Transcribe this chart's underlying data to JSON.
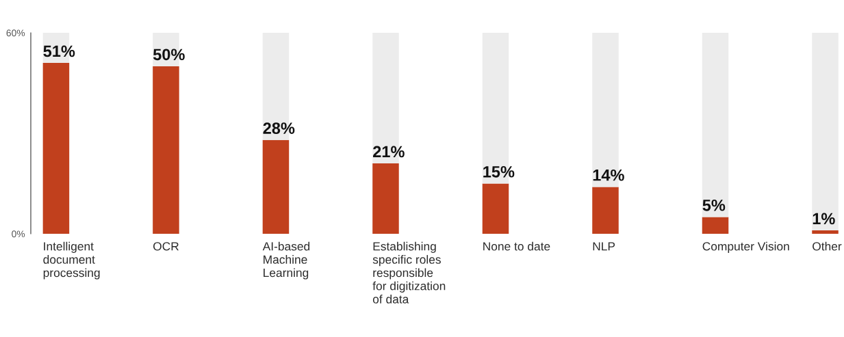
{
  "chart_data": {
    "type": "bar",
    "categories": [
      "Intelligent\ndocument\nprocessing",
      "OCR",
      "AI-based\nMachine\nLearning",
      "Establishing\nspecific roles\nresponsible\nfor digitization\nof data",
      "None to date",
      "NLP",
      "Computer Vision",
      "Other"
    ],
    "series": [
      {
        "color": "#c1401d",
        "values": [
          51,
          50,
          28,
          21,
          15,
          14,
          5,
          1
        ],
        "value_labels": [
          "51%",
          "50%",
          "28%",
          "21%",
          "15%",
          "14%",
          "5%",
          "1%"
        ]
      },
      {
        "color": "#ececec",
        "values": [
          9,
          10,
          32,
          39,
          45,
          46,
          55,
          59
        ]
      }
    ],
    "stacked": true,
    "ylim": [
      0,
      60
    ],
    "yticks": [
      {
        "value": 0,
        "label": "0%"
      },
      {
        "value": 60,
        "label": "60%"
      }
    ],
    "grid": false,
    "legend": false
  }
}
